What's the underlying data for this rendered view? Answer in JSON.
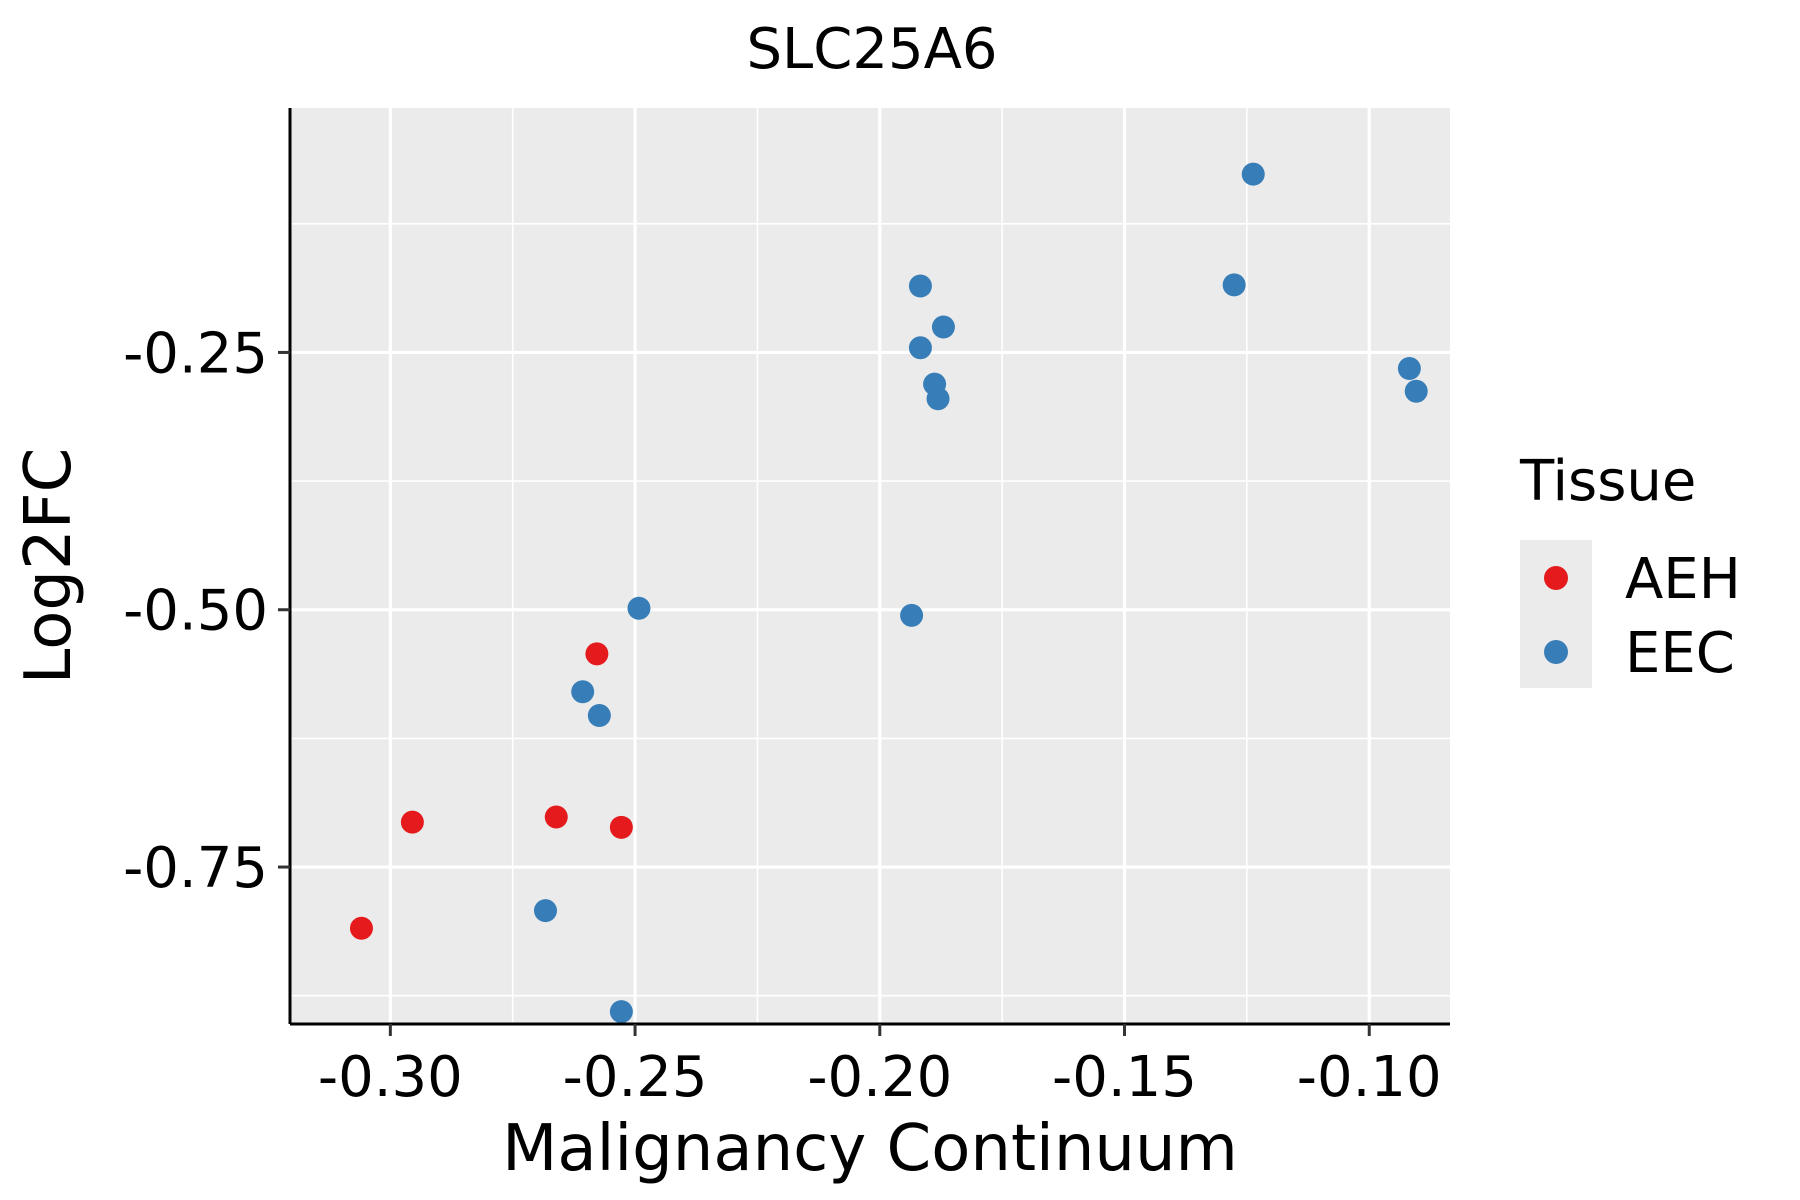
{
  "chart_data": {
    "type": "scatter",
    "title": "SLC25A6",
    "xlabel": "Malignancy Continuum",
    "ylabel": "Log2FC",
    "xlim": [
      -0.3205,
      -0.0835
    ],
    "ylim": [
      -0.9025,
      -0.0125
    ],
    "xticks": [
      -0.3,
      -0.25,
      -0.2,
      -0.15,
      -0.1
    ],
    "xtick_labels": [
      "-0.30",
      "-0.25",
      "-0.20",
      "-0.15",
      "-0.10"
    ],
    "yticks": [
      -0.25,
      -0.5,
      -0.75
    ],
    "ytick_labels": [
      "-0.25",
      "-0.50",
      "-0.75"
    ],
    "grid": true,
    "legend": {
      "title": "Tissue",
      "position": "right",
      "entries": [
        {
          "name": "AEH",
          "color": "#E41A1C"
        },
        {
          "name": "EEC",
          "color": "#377EB8"
        }
      ]
    },
    "series": [
      {
        "name": "AEH",
        "color": "#E41A1C",
        "points": [
          {
            "x": -0.3059,
            "y": -0.8095
          },
          {
            "x": -0.2955,
            "y": -0.7064
          },
          {
            "x": -0.2661,
            "y": -0.7014
          },
          {
            "x": -0.2578,
            "y": -0.5429
          },
          {
            "x": -0.2528,
            "y": -0.7114
          }
        ]
      },
      {
        "name": "EEC",
        "color": "#377EB8",
        "points": [
          {
            "x": -0.2683,
            "y": -0.7923
          },
          {
            "x": -0.2607,
            "y": -0.5797
          },
          {
            "x": -0.2573,
            "y": -0.6028
          },
          {
            "x": -0.2528,
            "y": -0.8905
          },
          {
            "x": -0.2492,
            "y": -0.4986
          },
          {
            "x": -0.1935,
            "y": -0.5055
          },
          {
            "x": -0.1917,
            "y": -0.1854
          },
          {
            "x": -0.1917,
            "y": -0.2454
          },
          {
            "x": -0.1888,
            "y": -0.2808
          },
          {
            "x": -0.1881,
            "y": -0.295
          },
          {
            "x": -0.187,
            "y": -0.2253
          },
          {
            "x": -0.1276,
            "y": -0.1844
          },
          {
            "x": -0.1237,
            "y": -0.0768
          },
          {
            "x": -0.0918,
            "y": -0.2656
          },
          {
            "x": -0.0904,
            "y": -0.2877
          }
        ]
      }
    ]
  }
}
